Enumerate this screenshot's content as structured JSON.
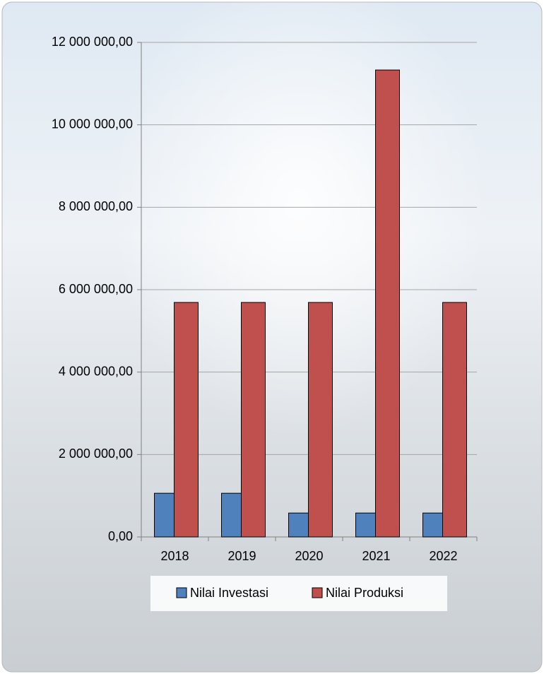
{
  "chart_data": {
    "type": "bar",
    "categories": [
      "2018",
      "2019",
      "2020",
      "2021",
      "2022"
    ],
    "series": [
      {
        "name": "Nilai Investasi",
        "color": "#4f81bd",
        "values": [
          1060000,
          1060000,
          580000,
          580000,
          580000
        ]
      },
      {
        "name": "Nilai Produksi",
        "color": "#c0504d",
        "values": [
          5690000,
          5690000,
          5690000,
          11330000,
          5690000
        ]
      }
    ],
    "ylim": [
      0,
      12000000
    ],
    "yticks": [
      {
        "value": 0,
        "label": "0,00"
      },
      {
        "value": 2000000,
        "label": "2 000 000,00"
      },
      {
        "value": 4000000,
        "label": "4 000 000,00"
      },
      {
        "value": 6000000,
        "label": "6 000 000,00"
      },
      {
        "value": 8000000,
        "label": "8 000 000,00"
      },
      {
        "value": 10000000,
        "label": "10 000 000,00"
      },
      {
        "value": 12000000,
        "label": "12 000 000,00"
      }
    ],
    "grid": true,
    "legend": "bottom"
  }
}
